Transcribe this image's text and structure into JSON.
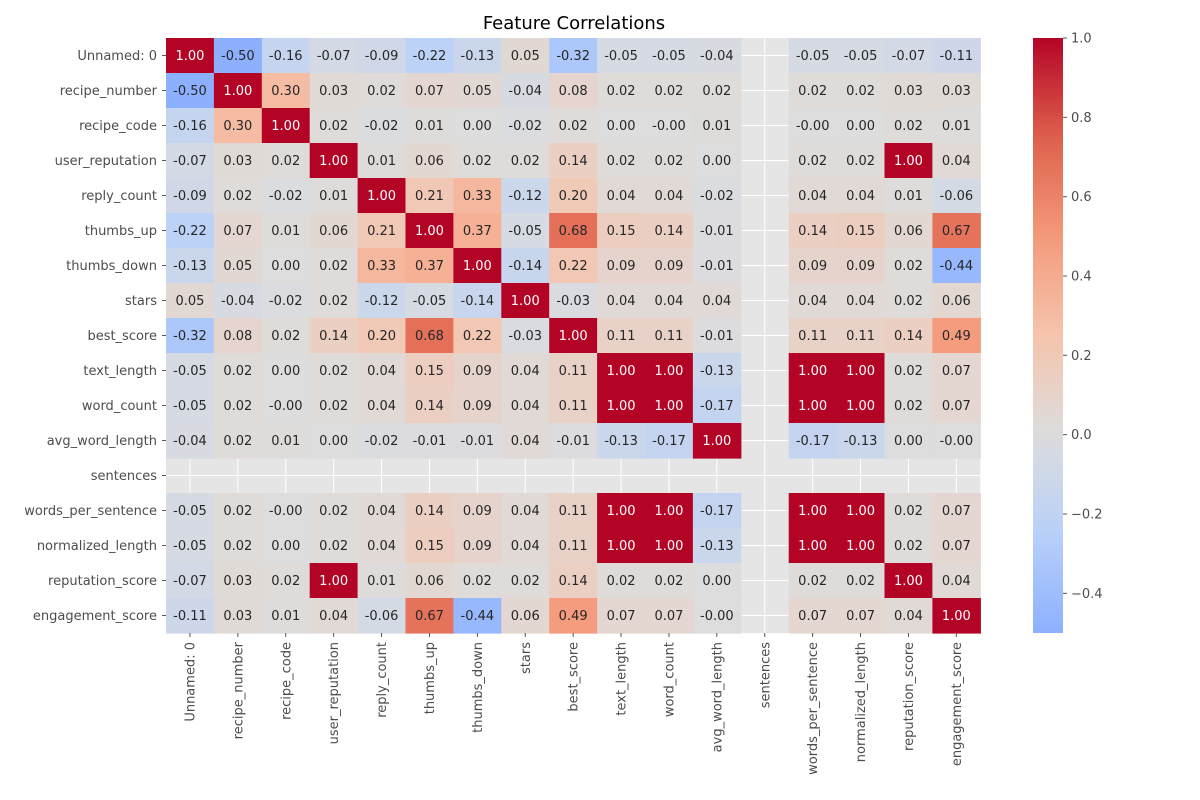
{
  "chart_data": {
    "type": "heatmap",
    "title": "Feature Correlations",
    "labels": [
      "Unnamed: 0",
      "recipe_number",
      "recipe_code",
      "user_reputation",
      "reply_count",
      "thumbs_up",
      "thumbs_down",
      "stars",
      "best_score",
      "text_length",
      "word_count",
      "avg_word_length",
      "sentences",
      "words_per_sentence",
      "normalized_length",
      "reputation_score",
      "engagement_score"
    ],
    "values": [
      [
        1.0,
        -0.5,
        -0.16,
        -0.07,
        -0.09,
        -0.22,
        -0.13,
        0.05,
        -0.32,
        -0.05,
        -0.05,
        -0.04,
        null,
        -0.05,
        -0.05,
        -0.07,
        -0.11
      ],
      [
        -0.5,
        1.0,
        0.3,
        0.03,
        0.02,
        0.07,
        0.05,
        -0.04,
        0.08,
        0.02,
        0.02,
        0.02,
        null,
        0.02,
        0.02,
        0.03,
        0.03
      ],
      [
        -0.16,
        0.3,
        1.0,
        0.02,
        -0.02,
        0.01,
        0.0,
        -0.02,
        0.02,
        0.0,
        -0.0,
        0.01,
        null,
        -0.0,
        0.0,
        0.02,
        0.01
      ],
      [
        -0.07,
        0.03,
        0.02,
        1.0,
        0.01,
        0.06,
        0.02,
        0.02,
        0.14,
        0.02,
        0.02,
        0.0,
        null,
        0.02,
        0.02,
        1.0,
        0.04
      ],
      [
        -0.09,
        0.02,
        -0.02,
        0.01,
        1.0,
        0.21,
        0.33,
        -0.12,
        0.2,
        0.04,
        0.04,
        -0.02,
        null,
        0.04,
        0.04,
        0.01,
        -0.06
      ],
      [
        -0.22,
        0.07,
        0.01,
        0.06,
        0.21,
        1.0,
        0.37,
        -0.05,
        0.68,
        0.15,
        0.14,
        -0.01,
        null,
        0.14,
        0.15,
        0.06,
        0.67
      ],
      [
        -0.13,
        0.05,
        0.0,
        0.02,
        0.33,
        0.37,
        1.0,
        -0.14,
        0.22,
        0.09,
        0.09,
        -0.01,
        null,
        0.09,
        0.09,
        0.02,
        -0.44
      ],
      [
        0.05,
        -0.04,
        -0.02,
        0.02,
        -0.12,
        -0.05,
        -0.14,
        1.0,
        -0.03,
        0.04,
        0.04,
        0.04,
        null,
        0.04,
        0.04,
        0.02,
        0.06
      ],
      [
        -0.32,
        0.08,
        0.02,
        0.14,
        0.2,
        0.68,
        0.22,
        -0.03,
        1.0,
        0.11,
        0.11,
        -0.01,
        null,
        0.11,
        0.11,
        0.14,
        0.49
      ],
      [
        -0.05,
        0.02,
        0.0,
        0.02,
        0.04,
        0.15,
        0.09,
        0.04,
        0.11,
        1.0,
        1.0,
        -0.13,
        null,
        1.0,
        1.0,
        0.02,
        0.07
      ],
      [
        -0.05,
        0.02,
        -0.0,
        0.02,
        0.04,
        0.14,
        0.09,
        0.04,
        0.11,
        1.0,
        1.0,
        -0.17,
        null,
        1.0,
        1.0,
        0.02,
        0.07
      ],
      [
        -0.04,
        0.02,
        0.01,
        0.0,
        -0.02,
        -0.01,
        -0.01,
        0.04,
        -0.01,
        -0.13,
        -0.17,
        1.0,
        null,
        -0.17,
        -0.13,
        0.0,
        -0.0
      ],
      [
        null,
        null,
        null,
        null,
        null,
        null,
        null,
        null,
        null,
        null,
        null,
        null,
        null,
        null,
        null,
        null,
        null
      ],
      [
        -0.05,
        0.02,
        -0.0,
        0.02,
        0.04,
        0.14,
        0.09,
        0.04,
        0.11,
        1.0,
        1.0,
        -0.17,
        null,
        1.0,
        1.0,
        0.02,
        0.07
      ],
      [
        -0.05,
        0.02,
        0.0,
        0.02,
        0.04,
        0.15,
        0.09,
        0.04,
        0.11,
        1.0,
        1.0,
        -0.13,
        null,
        1.0,
        1.0,
        0.02,
        0.07
      ],
      [
        -0.07,
        0.03,
        0.02,
        1.0,
        0.01,
        0.06,
        0.02,
        0.02,
        0.14,
        0.02,
        0.02,
        0.0,
        null,
        0.02,
        0.02,
        1.0,
        0.04
      ],
      [
        -0.11,
        0.03,
        0.01,
        0.04,
        -0.06,
        0.67,
        -0.44,
        0.06,
        0.49,
        0.07,
        0.07,
        -0.0,
        null,
        0.07,
        0.07,
        0.04,
        1.0
      ]
    ],
    "colormap": "coolwarm",
    "center": 0,
    "vmin": -0.5,
    "vmax": 1.0,
    "colorbar_ticks": [
      1.0,
      0.8,
      0.6,
      0.4,
      0.2,
      0.0,
      -0.2,
      -0.4
    ],
    "colorbar_tick_labels": [
      "1.0",
      "0.8",
      "0.6",
      "0.4",
      "0.2",
      "0.0",
      "−0.2",
      "−0.4"
    ],
    "missing_color": "#e5e5e5",
    "grid": true,
    "annotated": true,
    "number_format": "2 decimals"
  }
}
